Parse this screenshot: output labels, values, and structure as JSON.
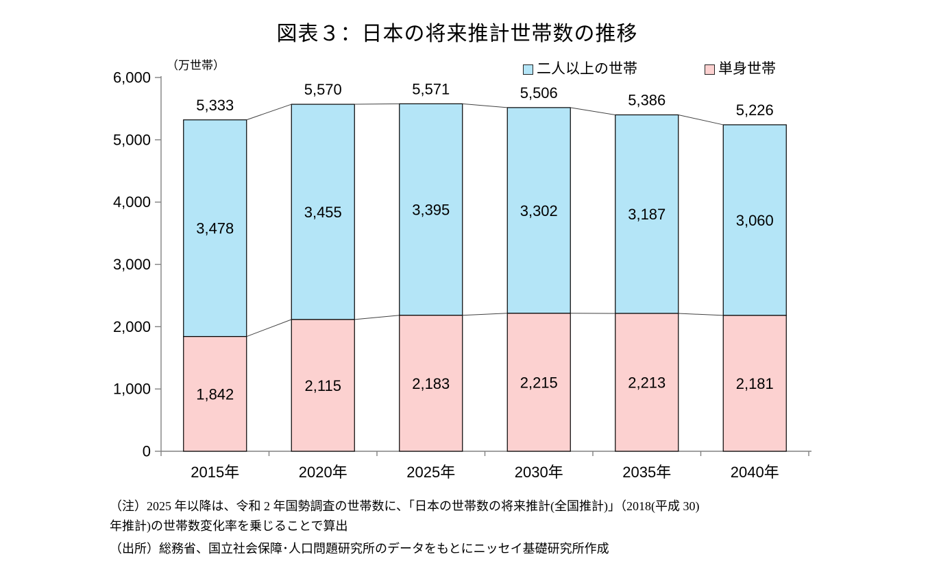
{
  "title": "図表３：日本の将来推計世帯数の推移",
  "chart_data": {
    "type": "bar",
    "stacked": true,
    "title": "図表３：日本の将来推計世帯数の推移",
    "unit_label": "（万世帯）",
    "categories": [
      "2015年",
      "2020年",
      "2025年",
      "2030年",
      "2035年",
      "2040年"
    ],
    "series": [
      {
        "name": "単身世帯",
        "color": "#FCD1D0",
        "values": [
          1842,
          2115,
          2183,
          2215,
          2213,
          2181
        ]
      },
      {
        "name": "二人以上の世帯",
        "color": "#B4E5F7",
        "values": [
          3478,
          3455,
          3395,
          3302,
          3187,
          3060
        ]
      }
    ],
    "total_labels": [
      "5,333",
      "5,570",
      "5,571",
      "5,506",
      "5,386",
      "5,226"
    ],
    "legend": [
      {
        "label": "二人以上の世帯",
        "color": "#B4E5F7"
      },
      {
        "label": "単身世帯",
        "color": "#FCD1D0"
      }
    ],
    "legend_position": "top-right",
    "grid": false,
    "ylim": [
      0,
      6000
    ],
    "ytick_interval": 1000,
    "yticks": [
      "0",
      "1,000",
      "2,000",
      "3,000",
      "4,000",
      "5,000",
      "6,000"
    ],
    "bar_border_color": "#000000",
    "axis_color": "#808080",
    "connector_color": "#404040",
    "series_connector_lines": true
  },
  "notes": {
    "note_line1": "（注）2025 年以降は、令和 2 年国勢調査の世帯数に、「日本の世帯数の将来推計(全国推計)」（2018(平成 30)",
    "note_line2": "年推計)の世帯数変化率を乗じることで算出",
    "source": "（出所）総務省、国立社会保障･人口問題研究所のデータをもとにニッセイ基礎研究所作成"
  }
}
